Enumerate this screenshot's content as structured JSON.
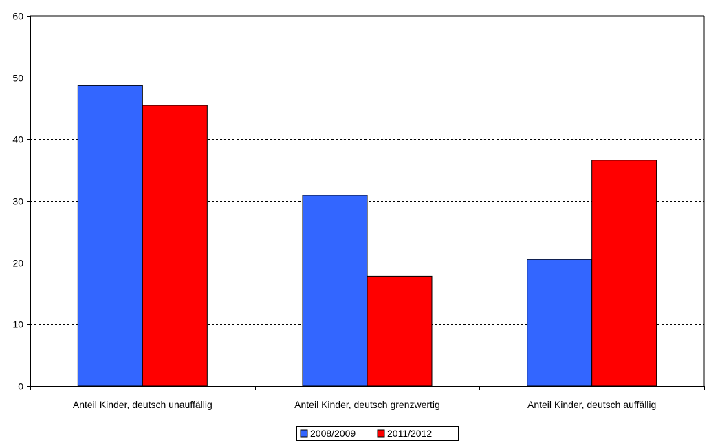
{
  "chart_data": {
    "type": "bar",
    "title": "",
    "xlabel": "",
    "ylabel": "",
    "ylim": [
      0,
      60
    ],
    "yticks": [
      0,
      10,
      20,
      30,
      40,
      50,
      60
    ],
    "grid": true,
    "legend_position": "bottom",
    "categories": [
      "Anteil Kinder, deutsch unauffällig",
      "Anteil Kinder, deutsch grenzwertig",
      "Anteil Kinder, deutsch auffällig"
    ],
    "series": [
      {
        "name": "2008/2009",
        "color": "#3366ff",
        "values": [
          48.7,
          30.9,
          20.5
        ]
      },
      {
        "name": "2011/2012",
        "color": "#ff0000",
        "values": [
          45.5,
          17.8,
          36.6
        ]
      }
    ]
  }
}
